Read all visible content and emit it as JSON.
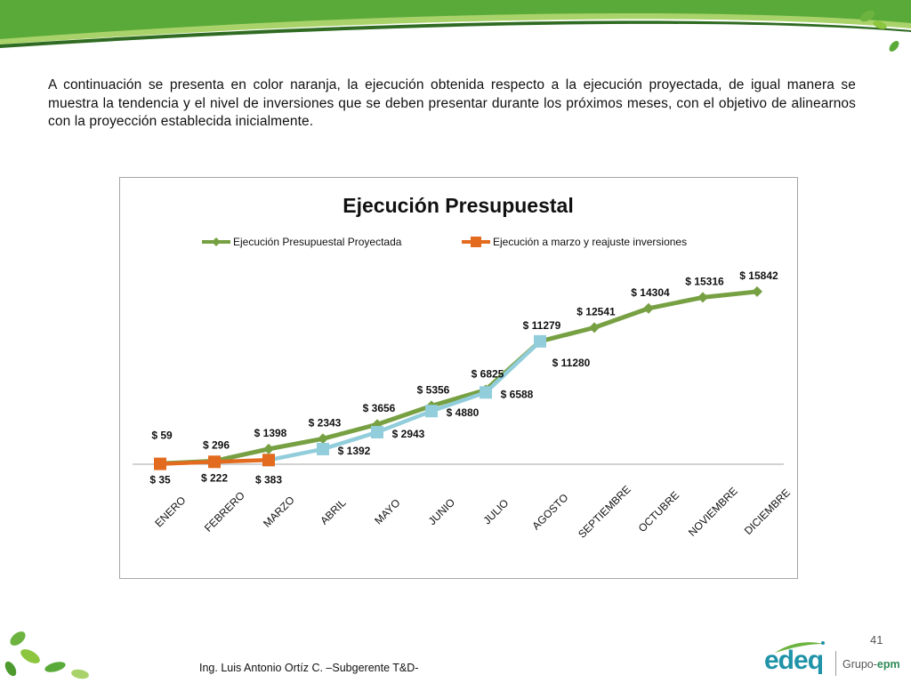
{
  "intro_text": "A continuación se presenta en color naranja, la ejecución obtenida respecto a la ejecución proyectada, de igual manera se muestra la tendencia y el nivel de inversiones que se deben presentar durante los próximos meses, con el objetivo de alinearnos con la proyección establecida inicialmente.",
  "page_number": "41",
  "author": "Ing. Luis Antonio Ortíz C. –Subgerente T&D-",
  "logo": {
    "brand": "edeq",
    "group": "Grupo-",
    "group_brand": "epm"
  },
  "colors": {
    "banner_green": "#5aaa3a",
    "projected": "#77a043",
    "actual": "#e26b1f",
    "trend": "#92cddc"
  },
  "chart_data": {
    "type": "line",
    "title": "Ejecución Presupuestal",
    "categories": [
      "ENERO",
      "FEBRERO",
      "MARZO",
      "ABRIL",
      "MAYO",
      "JUNIO",
      "JULIO",
      "AGOSTO",
      "SEPTIEMBRE",
      "OCTUBRE",
      "NOVIEMBRE",
      "DICIEMBRE"
    ],
    "legend_position": "top",
    "grid": false,
    "ylim": [
      0,
      16000
    ],
    "series": [
      {
        "name": "Ejecución Presupuestal Proyectada",
        "marker": "diamond",
        "color": "#77a043",
        "values": [
          59,
          296,
          1398,
          2343,
          3656,
          5356,
          6825,
          11279,
          12541,
          14304,
          15316,
          15842
        ],
        "labels": [
          "$ 59",
          "$ 296",
          "$ 1398",
          "$ 2343",
          "$ 3656",
          "$ 5356",
          "$ 6825",
          "$ 11279",
          "$ 12541",
          "$ 14304",
          "$ 15316",
          "$ 15842"
        ]
      },
      {
        "name": "",
        "marker": "square",
        "color": "#92cddc",
        "values": [
          null,
          null,
          383,
          1392,
          2943,
          4880,
          6588,
          11280,
          null,
          null,
          null,
          null
        ],
        "labels": [
          null,
          null,
          null,
          "$ 1392",
          "$ 2943",
          "$ 4880",
          "$ 6588",
          "$ 11280",
          null,
          null,
          null,
          null
        ]
      },
      {
        "name": "Ejecución a marzo y reajuste inversiones",
        "marker": "square",
        "color": "#e26b1f",
        "values": [
          35,
          222,
          383,
          null,
          null,
          null,
          null,
          null,
          null,
          null,
          null,
          null
        ],
        "labels": [
          "$ 35",
          "$ 222",
          "$ 383",
          null,
          null,
          null,
          null,
          null,
          null,
          null,
          null,
          null
        ]
      }
    ]
  }
}
